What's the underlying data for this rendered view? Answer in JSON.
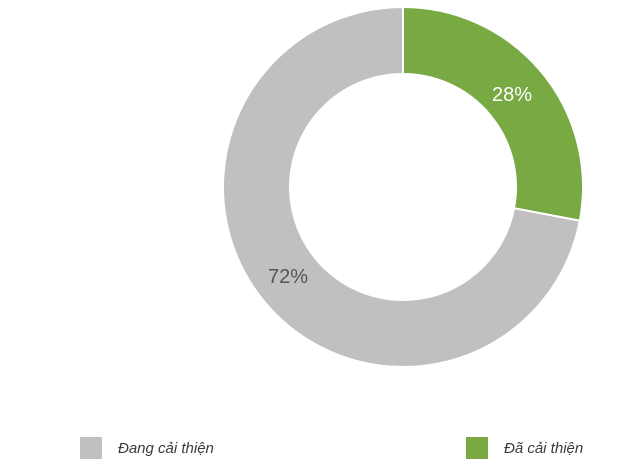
{
  "chart_data": {
    "type": "pie",
    "donut": true,
    "title": "",
    "start": "top, clockwise",
    "series": [
      {
        "label": "Đã cải thiện",
        "value": 28,
        "display": "28%",
        "color": "#78a942",
        "label_color": "#ffffff"
      },
      {
        "label": "Đang cải thiện",
        "value": 72,
        "display": "72%",
        "color": "#c0c0c0",
        "label_color": "#555555"
      }
    ],
    "legend": {
      "placement": "bottom",
      "items": [
        {
          "label": "Đang cải thiện",
          "color": "#c0c0c0"
        },
        {
          "label": "Đã cải thiện",
          "color": "#78a942"
        }
      ]
    }
  }
}
